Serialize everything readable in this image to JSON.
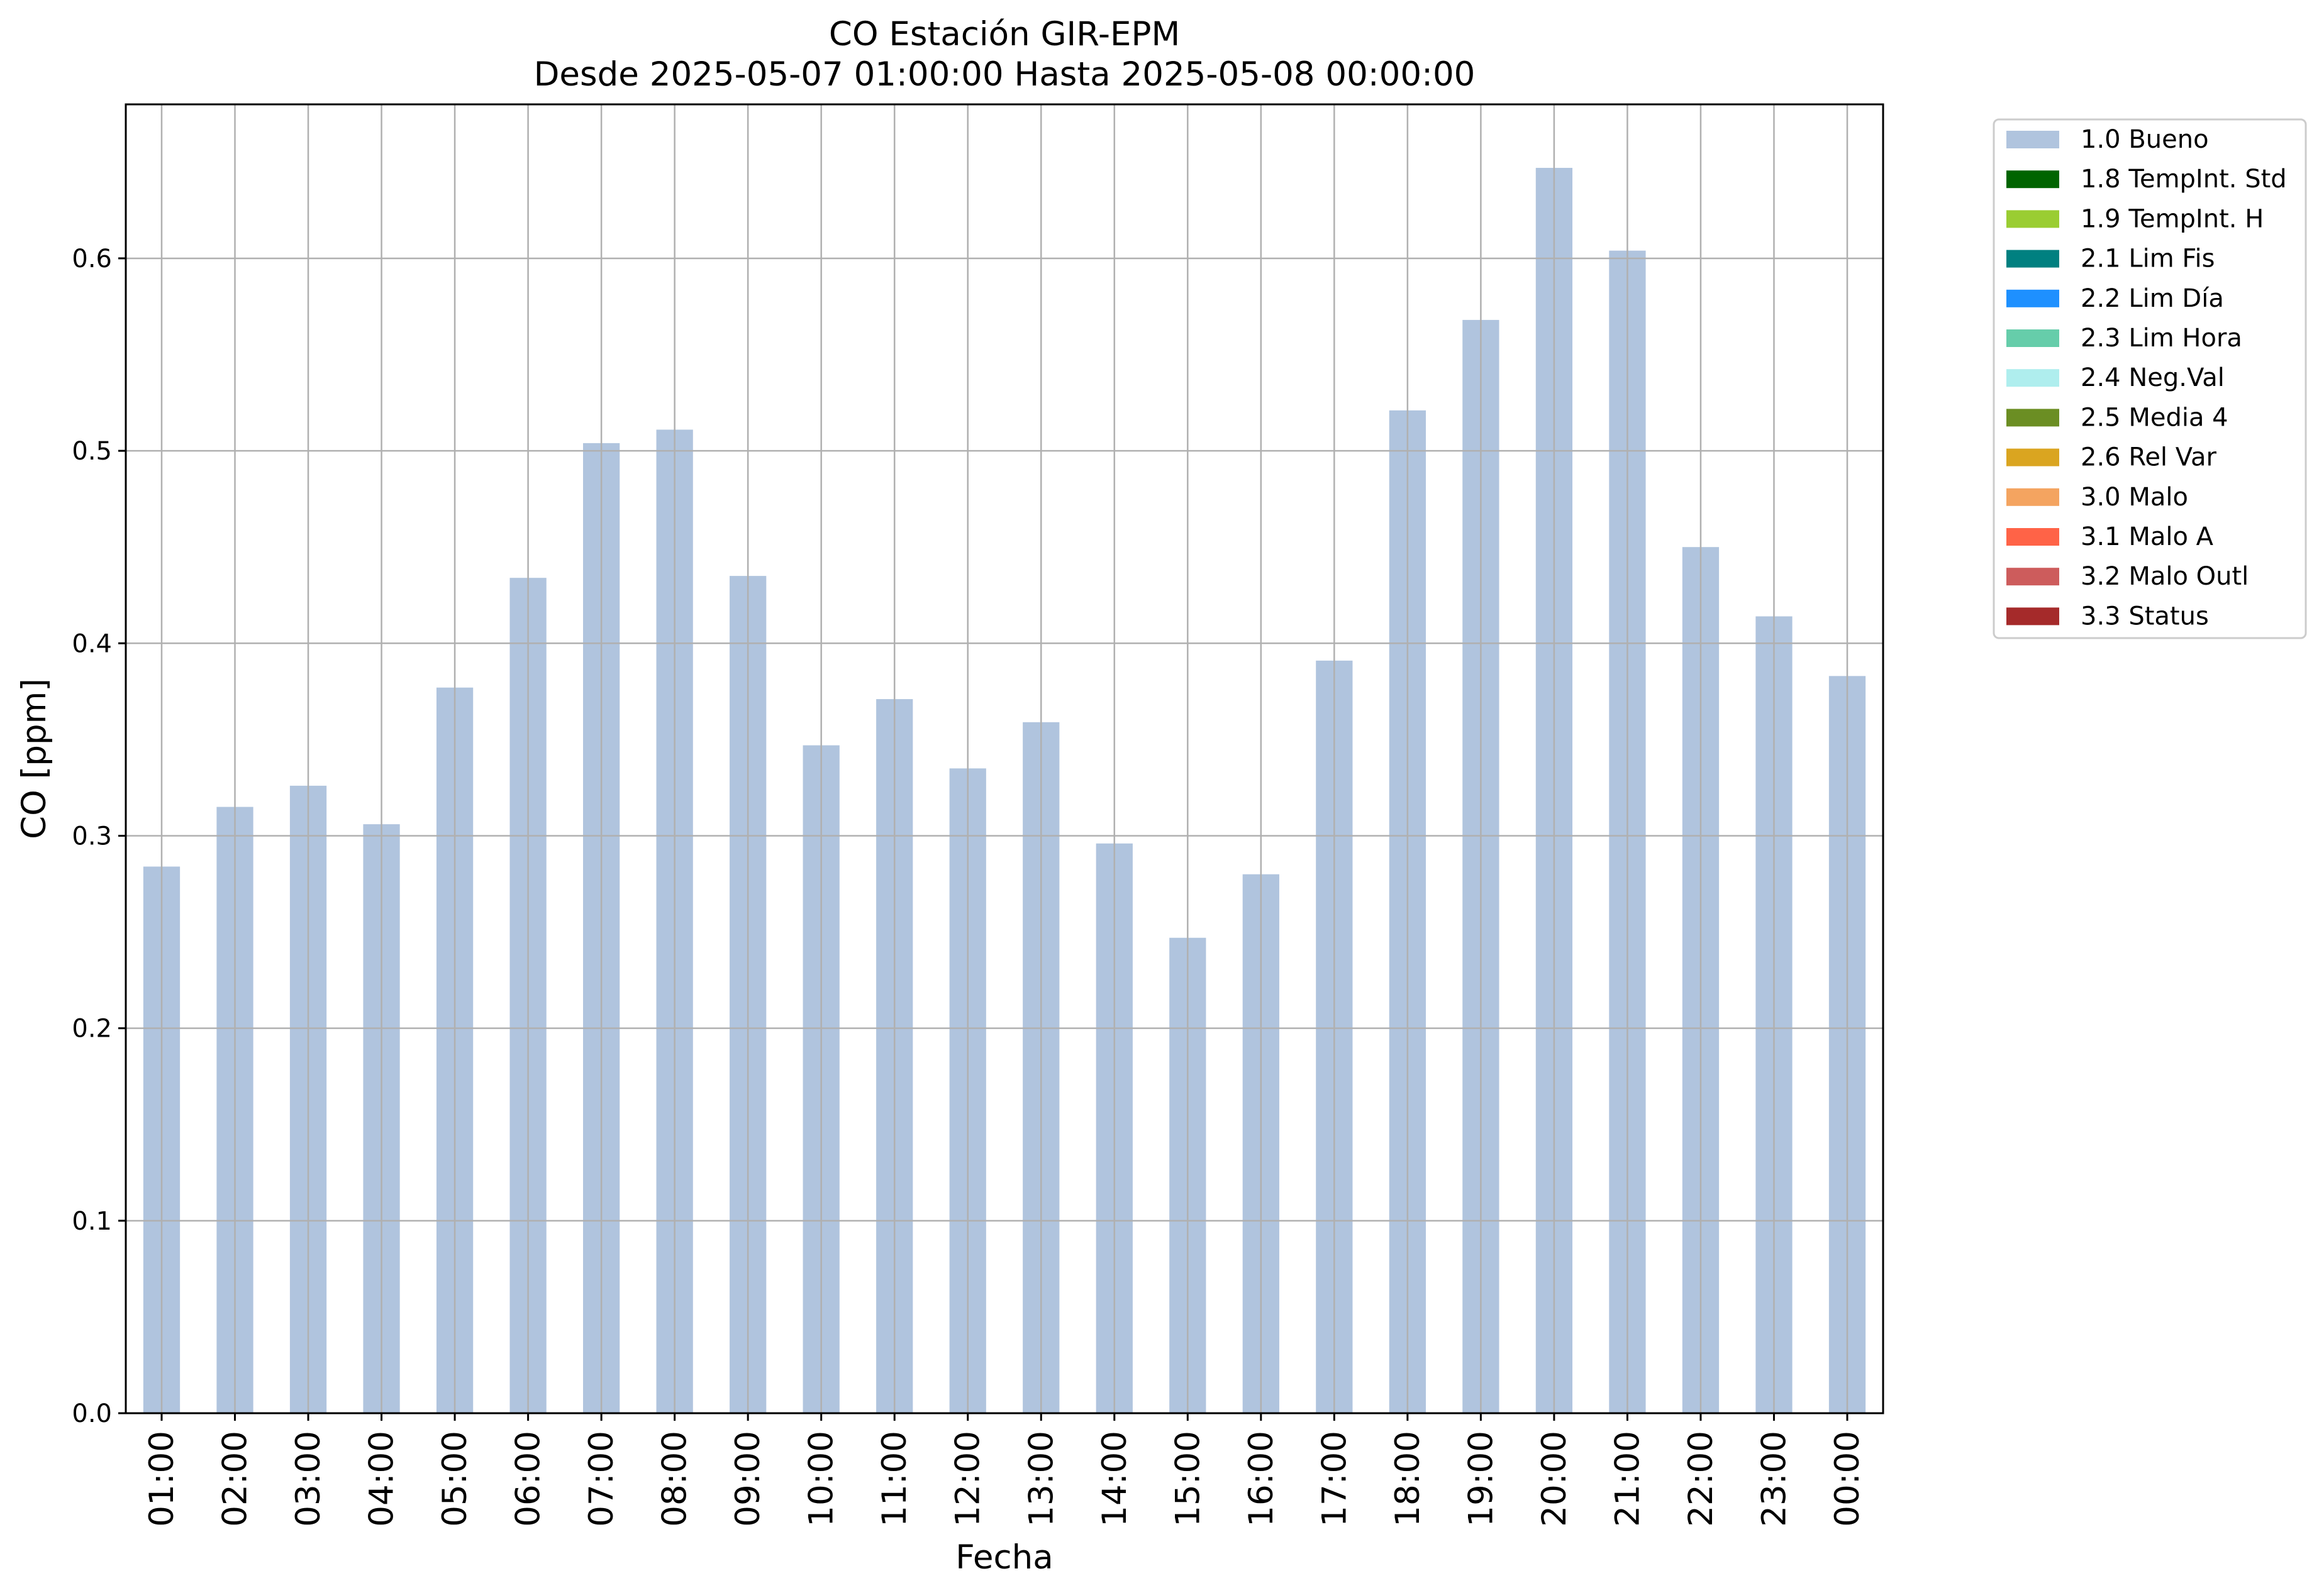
{
  "chart_data": {
    "type": "bar",
    "title": "CO Estación GIR-EPM",
    "subtitle": "Desde 2025-05-07 01:00:00 Hasta 2025-05-08 00:00:00",
    "xlabel": "Fecha",
    "ylabel": "CO [ppm]",
    "ylim": [
      0,
      0.68
    ],
    "yticks": [
      0.0,
      0.1,
      0.2,
      0.3,
      0.4,
      0.5,
      0.6
    ],
    "ytick_labels": [
      "0.0",
      "0.1",
      "0.2",
      "0.3",
      "0.4",
      "0.5",
      "0.6"
    ],
    "grid": true,
    "legend_placement": "outside-top-right",
    "categories": [
      "01:00",
      "02:00",
      "03:00",
      "04:00",
      "05:00",
      "06:00",
      "07:00",
      "08:00",
      "09:00",
      "10:00",
      "11:00",
      "12:00",
      "13:00",
      "14:00",
      "15:00",
      "16:00",
      "17:00",
      "18:00",
      "19:00",
      "20:00",
      "21:00",
      "22:00",
      "23:00",
      "00:00"
    ],
    "series": [
      {
        "name": "1.0 Bueno",
        "color": "#b0c4de",
        "values": [
          0.284,
          0.315,
          0.326,
          0.306,
          0.377,
          0.434,
          0.504,
          0.511,
          0.435,
          0.347,
          0.371,
          0.335,
          0.359,
          0.296,
          0.247,
          0.28,
          0.391,
          0.521,
          0.568,
          0.647,
          0.604,
          0.45,
          0.414,
          0.383
        ]
      }
    ],
    "legend": [
      {
        "label": "1.0 Bueno",
        "color": "#b0c4de"
      },
      {
        "label": "1.8 TempInt. Std",
        "color": "#006400"
      },
      {
        "label": "1.9 TempInt. H",
        "color": "#9acd32"
      },
      {
        "label": "2.1 Lim Fis",
        "color": "#008080"
      },
      {
        "label": "2.2 Lim Día",
        "color": "#1e90ff"
      },
      {
        "label": "2.3 Lim Hora",
        "color": "#66cdaa"
      },
      {
        "label": "2.4 Neg.Val",
        "color": "#afeeee"
      },
      {
        "label": "2.5 Media 4",
        "color": "#6b8e23"
      },
      {
        "label": "2.6 Rel Var",
        "color": "#daa520"
      },
      {
        "label": "3.0 Malo",
        "color": "#f4a460"
      },
      {
        "label": "3.1 Malo A",
        "color": "#ff6347"
      },
      {
        "label": "3.2 Malo Outl",
        "color": "#cd5c5c"
      },
      {
        "label": "3.3 Status",
        "color": "#a52a2a"
      }
    ]
  }
}
